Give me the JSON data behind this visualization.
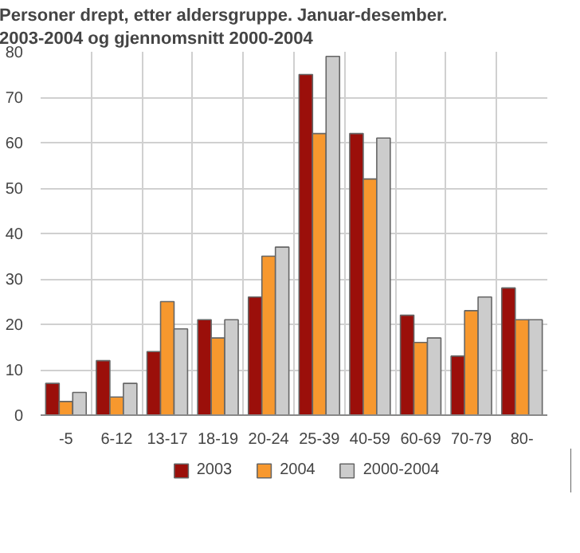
{
  "chart_data": {
    "type": "bar",
    "title": "Personer drept, etter aldersgruppe. Januar-desember.\n2003-2004 og gjennomsnitt 2000-2004",
    "categories": [
      "-5",
      "6-12",
      "13-17",
      "18-19",
      "20-24",
      "25-39",
      "40-59",
      "60-69",
      "70-79",
      "80-"
    ],
    "series": [
      {
        "name": "2003",
        "color": "#9b0f0a",
        "values": [
          7,
          12,
          14,
          21,
          26,
          75,
          62,
          22,
          13,
          28
        ]
      },
      {
        "name": "2004",
        "color": "#f7982e",
        "values": [
          3,
          4,
          25,
          17,
          35,
          62,
          52,
          16,
          23,
          21
        ]
      },
      {
        "name": "2000-2004",
        "color": "#cccccc",
        "values": [
          5,
          7,
          19,
          21,
          37,
          79,
          61,
          17,
          26,
          21
        ]
      }
    ],
    "ylim": [
      0,
      80
    ],
    "yticks": [
      0,
      10,
      20,
      30,
      40,
      50,
      60,
      70,
      80
    ],
    "grid": true,
    "legend": "bottom"
  }
}
